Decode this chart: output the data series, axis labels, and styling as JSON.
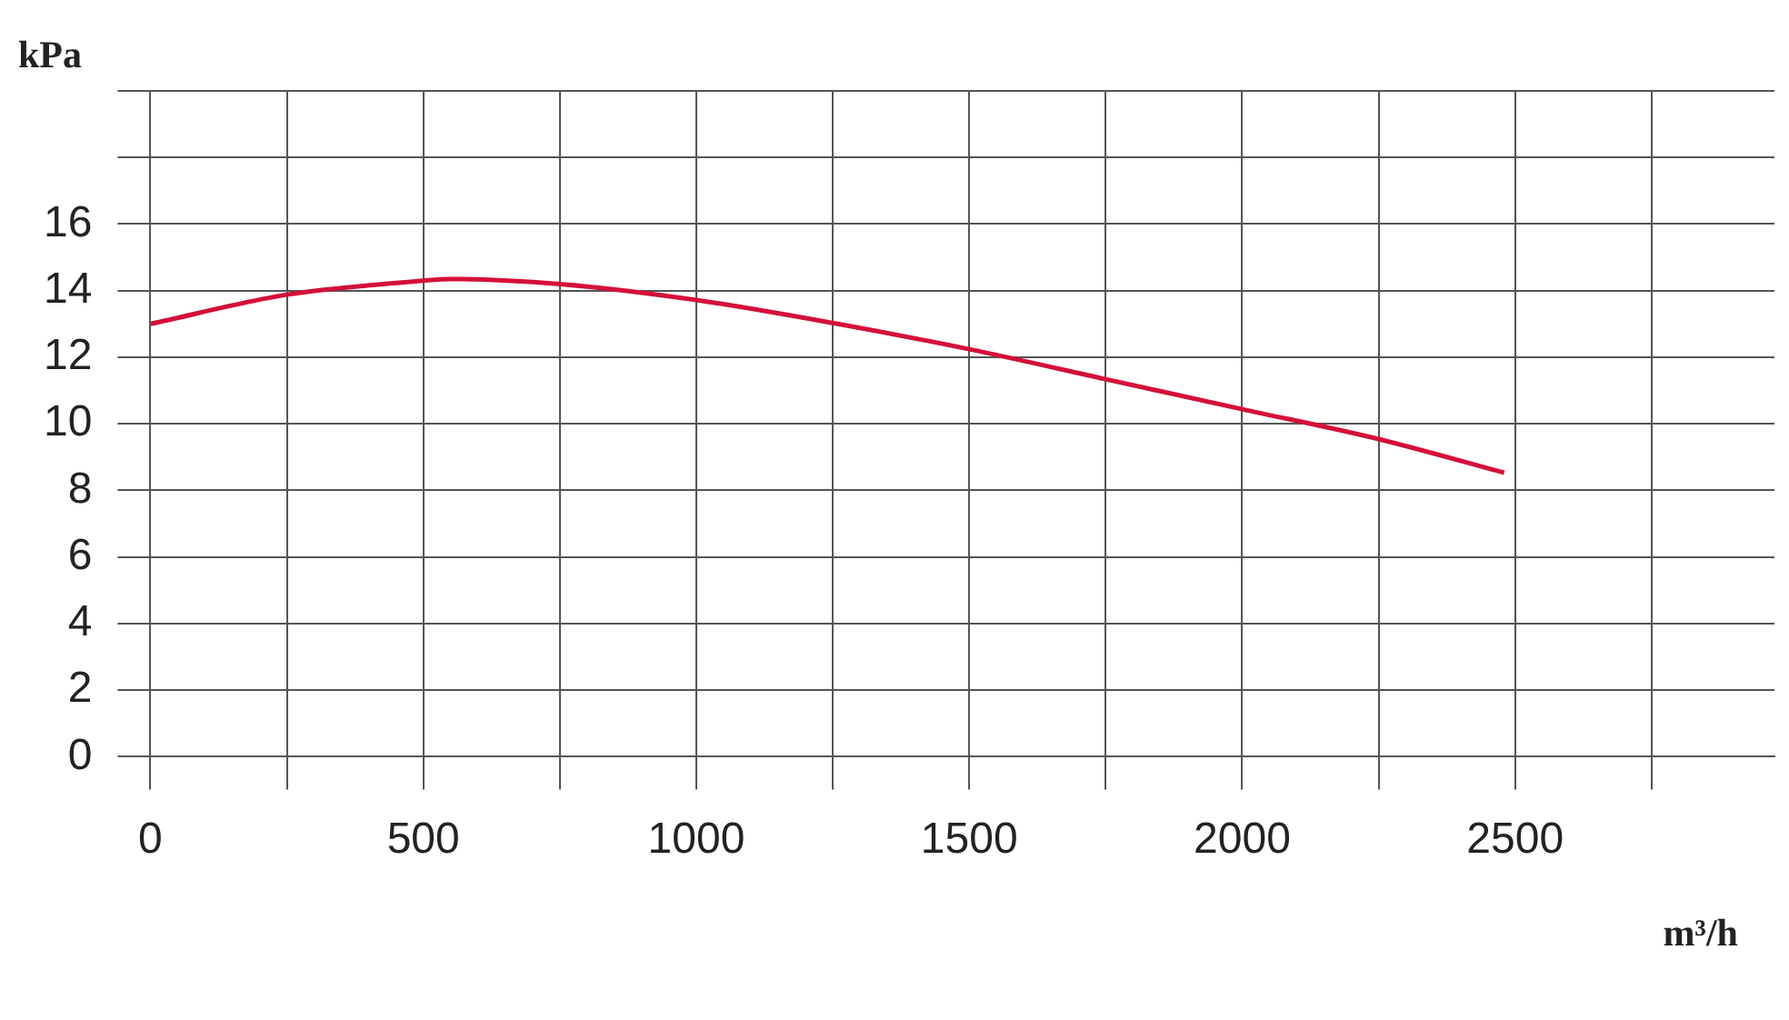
{
  "chart_data": {
    "type": "line",
    "xlabel": "m³/h",
    "ylabel": "kPa",
    "xlim": [
      0,
      2975
    ],
    "ylim": [
      0,
      20
    ],
    "xticks": [
      0,
      {
        "value": 250,
        "label": null
      },
      500,
      {
        "value": 750,
        "label": null
      },
      1000,
      {
        "value": 1250,
        "label": null
      },
      1500,
      {
        "value": 1750,
        "label": null
      },
      2000,
      {
        "value": 2250,
        "label": null
      },
      2500,
      {
        "value": 2750,
        "label": null
      }
    ],
    "yticks": [
      0,
      2,
      4,
      6,
      8,
      10,
      12,
      14,
      16,
      {
        "value": 18,
        "label": null
      },
      {
        "value": 20,
        "label": null
      }
    ],
    "grid": true,
    "legend": false,
    "marker": "none",
    "line_style": "solid",
    "series": [
      {
        "color": "#d4103a",
        "x": [
          0,
          250,
          500,
          550,
          750,
          1000,
          1250,
          1500,
          1750,
          2000,
          2250,
          2480
        ],
        "values": [
          13,
          13.88,
          14.3,
          14.35,
          14.2,
          13.72,
          13.03,
          12.24,
          11.34,
          10.44,
          9.54,
          8.53
        ]
      }
    ]
  }
}
